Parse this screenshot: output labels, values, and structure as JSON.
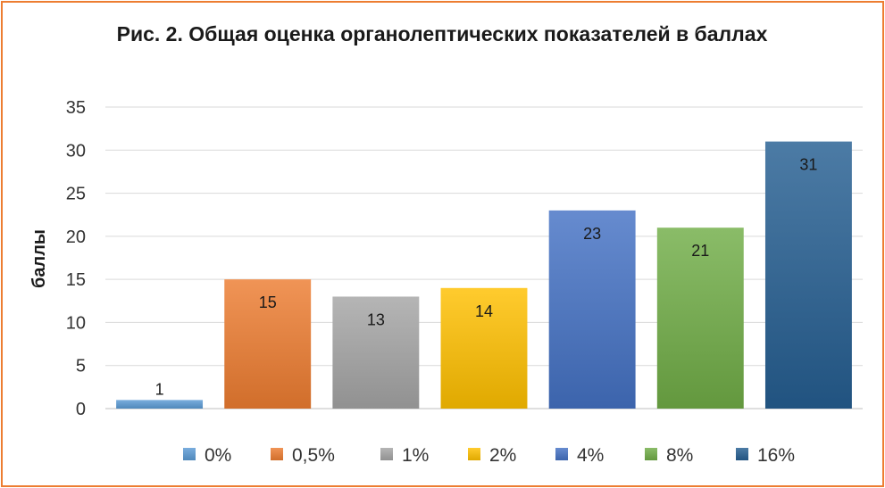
{
  "chart_data": {
    "type": "bar",
    "title": "Рис. 2. Общая оценка органолептических показателей в баллах",
    "xlabel": "",
    "ylabel": "баллы",
    "ylim": [
      0,
      35
    ],
    "yticks": [
      0,
      5,
      10,
      15,
      20,
      25,
      30,
      35
    ],
    "grid": true,
    "legend_position": "bottom",
    "series": [
      {
        "name": "0%",
        "value": 1,
        "color": "#5B9BD5"
      },
      {
        "name": "0,5%",
        "value": 15,
        "color": "#ED7D31"
      },
      {
        "name": "1%",
        "value": 13,
        "color": "#A5A5A5"
      },
      {
        "name": "2%",
        "value": 14,
        "color": "#FFC000"
      },
      {
        "name": "4%",
        "value": 23,
        "color": "#4472C4"
      },
      {
        "name": "8%",
        "value": 21,
        "color": "#70AD47"
      },
      {
        "name": "16%",
        "value": 31,
        "color": "#255E91"
      }
    ]
  }
}
